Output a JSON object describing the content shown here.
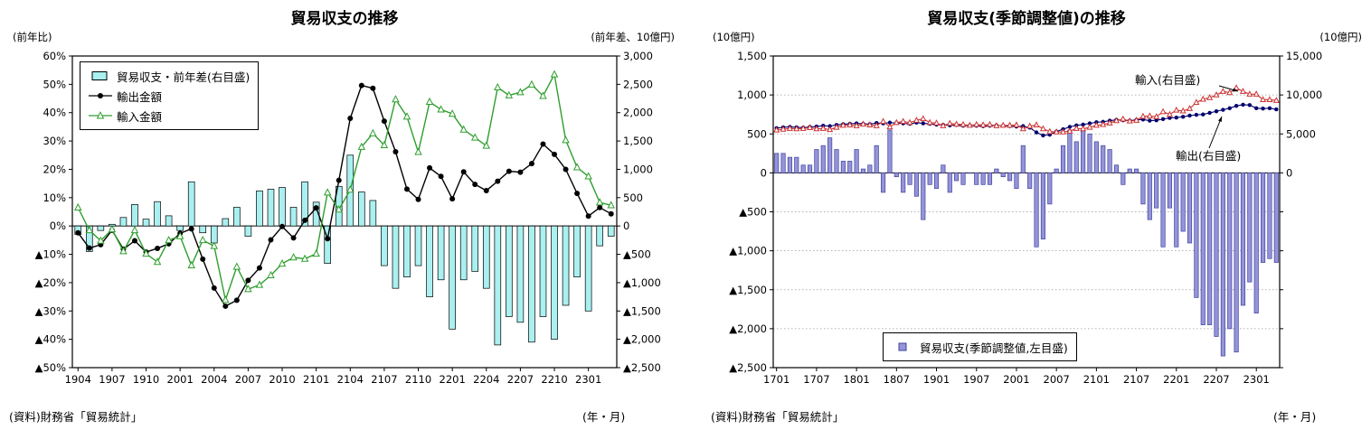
{
  "page": {
    "background": "#ffffff"
  },
  "chart_data": [
    {
      "id": "yoy",
      "type": "bar+line",
      "title": "貿易収支の推移",
      "left_axis_label": "(前年比)",
      "right_axis_label": "(前年差、10億円)",
      "x_axis_label": "(年・月)",
      "source": "(資料)財務省「貿易統計」",
      "grid": "none",
      "left_axis": {
        "max": 60,
        "min": -50,
        "step": 10,
        "percent": true
      },
      "right_axis": {
        "max": 3000,
        "min": -2500,
        "step": 500
      },
      "x": [
        "1904",
        "1905",
        "1906",
        "1907",
        "1908",
        "1909",
        "1910",
        "1911",
        "1912",
        "2001",
        "2002",
        "2003",
        "2004",
        "2005",
        "2006",
        "2007",
        "2008",
        "2009",
        "2010",
        "2011",
        "2012",
        "2101",
        "2102",
        "2103",
        "2104",
        "2105",
        "2106",
        "2107",
        "2108",
        "2109",
        "2110",
        "2111",
        "2112",
        "2201",
        "2202",
        "2203",
        "2204",
        "2205",
        "2206",
        "2207",
        "2208",
        "2209",
        "2210",
        "2211",
        "2212",
        "2301",
        "2302",
        "2303"
      ],
      "x_ticks": [
        "1904",
        "1907",
        "1910",
        "2001",
        "2004",
        "2007",
        "2010",
        "2101",
        "2104",
        "2107",
        "2110",
        "2201",
        "2204",
        "2207",
        "2210",
        "2301"
      ],
      "series": [
        {
          "key": "balance-bars",
          "name": "貿易収支・前年差(右目盛)",
          "type": "bar",
          "axis": "right",
          "color": "#aaf0f0",
          "border": "#000000",
          "values": [
            -150,
            -450,
            -80,
            30,
            150,
            380,
            120,
            430,
            180,
            -80,
            780,
            -120,
            -300,
            130,
            330,
            -180,
            620,
            650,
            680,
            330,
            780,
            420,
            -660,
            700,
            1250,
            600,
            450,
            -700,
            -1100,
            -900,
            -700,
            -1250,
            -950,
            -1820,
            -950,
            -800,
            -1100,
            -2100,
            -1600,
            -1700,
            -2050,
            -1600,
            -2000,
            -1400,
            -900,
            -1500,
            -350,
            -180
          ]
        },
        {
          "key": "exports-line",
          "name": "輸出金額",
          "type": "line",
          "axis": "left",
          "color": "#000000",
          "marker": "circle",
          "values": [
            -2.4,
            -7.8,
            -6.6,
            -1.5,
            -8.2,
            -5.2,
            -9.2,
            -7.9,
            -6.3,
            -2.6,
            -1.0,
            -11.7,
            -21.9,
            -28.3,
            -26.2,
            -19.2,
            -14.8,
            -4.9,
            -0.2,
            -4.2,
            2.0,
            6.4,
            -4.5,
            16.1,
            38.0,
            49.6,
            48.6,
            37.0,
            26.2,
            13.0,
            9.4,
            20.5,
            17.5,
            9.6,
            19.1,
            14.7,
            12.5,
            15.8,
            19.3,
            19.0,
            22.0,
            28.9,
            25.3,
            20.0,
            11.5,
            3.5,
            6.5,
            4.3
          ]
        },
        {
          "key": "imports-line",
          "name": "輸入金額",
          "type": "line",
          "axis": "left",
          "color": "#2e9e2e",
          "marker": "triangle",
          "values": [
            6.5,
            -1.5,
            -5.2,
            -1.2,
            -8.9,
            -1.5,
            -9.8,
            -12.7,
            -5.0,
            -3.6,
            -13.9,
            -5.0,
            -7.1,
            -26.1,
            -14.4,
            -22.3,
            -20.8,
            -17.4,
            -13.3,
            -11.1,
            -11.6,
            -9.8,
            11.8,
            5.8,
            12.8,
            27.9,
            32.7,
            28.5,
            44.7,
            38.6,
            26.1,
            43.8,
            41.1,
            39.6,
            34.0,
            31.2,
            28.3,
            48.9,
            46.1,
            47.2,
            49.9,
            45.9,
            53.5,
            30.3,
            20.7,
            17.5,
            8.3,
            7.3
          ]
        }
      ]
    },
    {
      "id": "sa",
      "type": "bar+line",
      "title": "貿易収支(季節調整値)の推移",
      "left_axis_label": "(10億円)",
      "right_axis_label": "(10億円)",
      "x_axis_label": "(年・月)",
      "source": "(資料)財務省「貿易統計」",
      "grid": "dotted",
      "left_axis": {
        "max": 1500,
        "min": -2500,
        "step": 500,
        "percent": false
      },
      "right_axis": {
        "max": 15000,
        "min": -25000,
        "step": 5000,
        "hide_below": 0
      },
      "x": [
        "1701",
        "1702",
        "1703",
        "1704",
        "1705",
        "1706",
        "1707",
        "1708",
        "1709",
        "1710",
        "1711",
        "1712",
        "1801",
        "1802",
        "1803",
        "1804",
        "1805",
        "1806",
        "1807",
        "1808",
        "1809",
        "1810",
        "1811",
        "1812",
        "1901",
        "1902",
        "1903",
        "1904",
        "1905",
        "1906",
        "1907",
        "1908",
        "1909",
        "1910",
        "1911",
        "1912",
        "2001",
        "2002",
        "2003",
        "2004",
        "2005",
        "2006",
        "2007",
        "2008",
        "2009",
        "2010",
        "2011",
        "2012",
        "2101",
        "2102",
        "2103",
        "2104",
        "2105",
        "2106",
        "2107",
        "2108",
        "2109",
        "2110",
        "2111",
        "2112",
        "2201",
        "2202",
        "2203",
        "2204",
        "2205",
        "2206",
        "2207",
        "2208",
        "2209",
        "2210",
        "2211",
        "2212",
        "2301",
        "2302",
        "2303",
        "2304"
      ],
      "x_ticks": [
        "1701",
        "1707",
        "1801",
        "1807",
        "1901",
        "1907",
        "2001",
        "2007",
        "2101",
        "2107",
        "2201",
        "2207",
        "2301"
      ],
      "series": [
        {
          "key": "balance-bars",
          "name": "貿易収支(季節調整値,左目盛)",
          "type": "bar",
          "axis": "left",
          "color": "#9494d8",
          "border": "#4040a0",
          "values": [
            250,
            250,
            200,
            200,
            100,
            100,
            300,
            350,
            450,
            300,
            150,
            150,
            300,
            50,
            100,
            350,
            -250,
            550,
            -50,
            -250,
            -150,
            -300,
            -600,
            -150,
            -200,
            100,
            -250,
            -100,
            -150,
            0,
            -150,
            -150,
            -150,
            50,
            -50,
            -100,
            -200,
            350,
            -200,
            -950,
            -850,
            -400,
            50,
            350,
            550,
            400,
            550,
            500,
            400,
            350,
            300,
            100,
            -150,
            50,
            50,
            -400,
            -600,
            -450,
            -950,
            -450,
            -950,
            -750,
            -900,
            -1600,
            -1950,
            -1950,
            -2100,
            -2350,
            -2000,
            -2300,
            -1700,
            -1400,
            -1800,
            -1150,
            -1100,
            -1150
          ]
        },
        {
          "key": "exports-line",
          "name": "輸出(右目盛)",
          "type": "line",
          "axis": "right",
          "color": "#00006e",
          "marker": "circle",
          "values": [
            5750,
            5850,
            5900,
            5850,
            5800,
            5900,
            5950,
            6050,
            6000,
            6150,
            6250,
            6300,
            6350,
            6300,
            6250,
            6400,
            6350,
            6450,
            6400,
            6350,
            6300,
            6450,
            6350,
            6300,
            6200,
            6150,
            6100,
            6150,
            6050,
            6100,
            6050,
            6000,
            6050,
            6100,
            6050,
            6000,
            5950,
            6000,
            5800,
            5200,
            4800,
            4900,
            5300,
            5600,
            5900,
            6100,
            6200,
            6350,
            6500,
            6550,
            6700,
            6800,
            6750,
            6700,
            6800,
            6850,
            6700,
            6750,
            6900,
            7050,
            7100,
            7200,
            7350,
            7450,
            7500,
            7700,
            7900,
            8100,
            8300,
            8600,
            8750,
            8700,
            8300,
            8250,
            8300,
            8150
          ]
        },
        {
          "key": "imports-line",
          "name": "輸入(右目盛)",
          "type": "line",
          "axis": "right",
          "color": "#cc3333",
          "marker": "triangle",
          "values": [
            5500,
            5600,
            5700,
            5650,
            5700,
            5800,
            5650,
            5700,
            5550,
            5850,
            6100,
            6150,
            6050,
            6250,
            6150,
            6050,
            6600,
            5900,
            6450,
            6600,
            6450,
            6750,
            6950,
            6450,
            6400,
            6050,
            6350,
            6250,
            6200,
            6100,
            6200,
            6150,
            6200,
            6050,
            6100,
            6100,
            6150,
            5650,
            6000,
            6150,
            5650,
            5300,
            5250,
            5250,
            5350,
            5700,
            5650,
            5850,
            6100,
            6200,
            6400,
            6700,
            6900,
            6650,
            6750,
            7250,
            7300,
            7200,
            7850,
            7500,
            8050,
            7950,
            8250,
            9050,
            9450,
            9650,
            10000,
            10450,
            10300,
            10900,
            10450,
            10100,
            10100,
            9400,
            9400,
            9300
          ]
        }
      ],
      "annotations": [
        {
          "key": "imports",
          "label": "輸入(右目盛)"
        },
        {
          "key": "exports",
          "label": "輸出(右目盛)"
        }
      ]
    }
  ]
}
